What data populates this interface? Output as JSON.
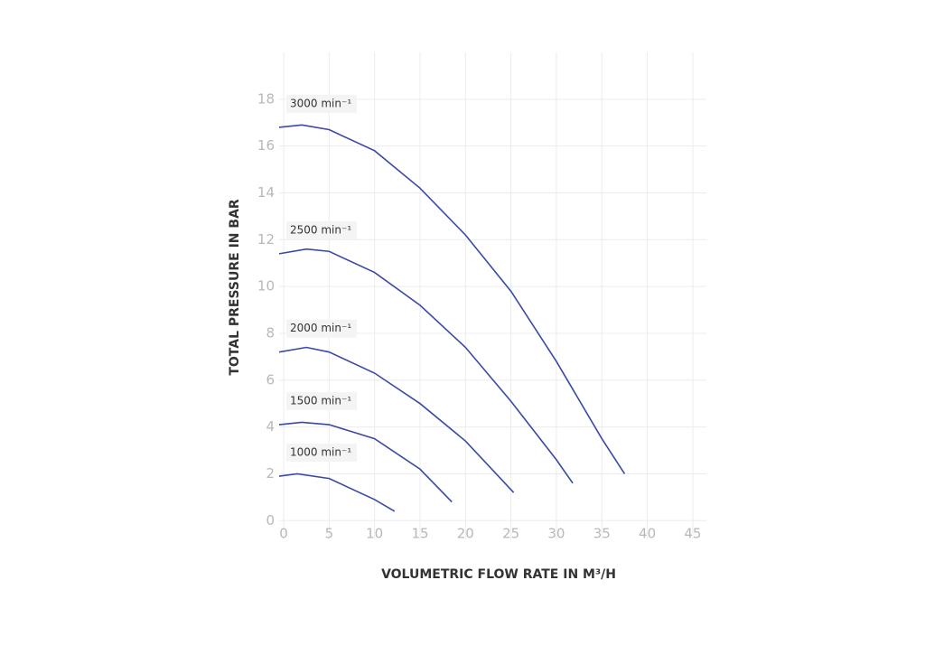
{
  "chart_data": {
    "type": "line",
    "xlabel": "VOLUMETRIC FLOW RATE IN M³/H",
    "ylabel": "TOTAL PRESSURE IN BAR",
    "xlim": [
      -0.5,
      46.5
    ],
    "ylim": [
      -0.8,
      20
    ],
    "xticks": [
      0,
      5,
      10,
      15,
      20,
      25,
      30,
      35,
      40,
      45
    ],
    "yticks": [
      0,
      2,
      4,
      6,
      8,
      10,
      12,
      14,
      16,
      18
    ],
    "grid": true,
    "series": [
      {
        "name": "3000 min⁻¹",
        "color": "#3a49a8",
        "x": [
          -0.5,
          2,
          5,
          10,
          15,
          20,
          25,
          30,
          35,
          37.5
        ],
        "values": [
          16.8,
          16.9,
          16.7,
          15.8,
          14.2,
          12.2,
          9.8,
          6.8,
          3.5,
          2.0
        ]
      },
      {
        "name": "2500 min⁻¹",
        "color": "#3a49a8",
        "x": [
          -0.5,
          2.5,
          5,
          10,
          15,
          20,
          25,
          30,
          31.8
        ],
        "values": [
          11.4,
          11.6,
          11.5,
          10.6,
          9.2,
          7.4,
          5.1,
          2.6,
          1.6
        ]
      },
      {
        "name": "2000 min⁻¹",
        "color": "#3a49a8",
        "x": [
          -0.5,
          2.5,
          5,
          10,
          15,
          20,
          25.3
        ],
        "values": [
          7.2,
          7.4,
          7.2,
          6.3,
          5.0,
          3.4,
          1.2
        ]
      },
      {
        "name": "1500 min⁻¹",
        "color": "#3a49a8",
        "x": [
          -0.5,
          2,
          5,
          10,
          15,
          18.5
        ],
        "values": [
          4.1,
          4.2,
          4.1,
          3.5,
          2.2,
          0.8
        ]
      },
      {
        "name": "1000 min⁻¹",
        "color": "#3a49a8",
        "x": [
          -0.5,
          1.5,
          5,
          10,
          12.2
        ],
        "values": [
          1.9,
          2.0,
          1.8,
          0.9,
          0.4
        ]
      }
    ]
  }
}
